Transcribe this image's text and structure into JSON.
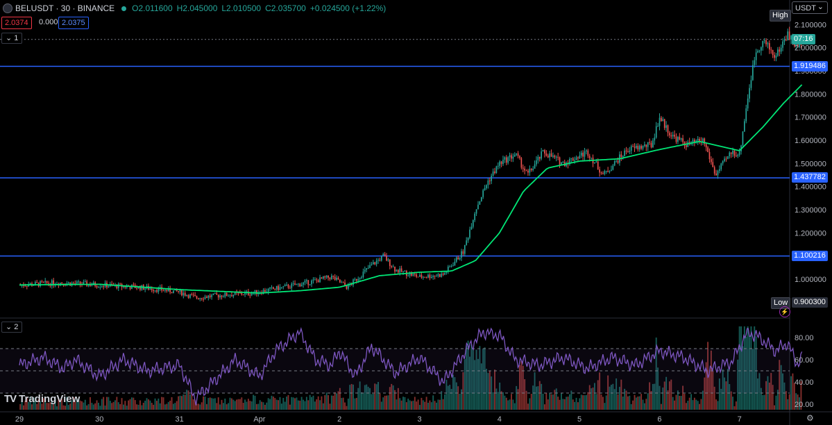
{
  "header": {
    "symbol": "BELUSDT · 30 · BINANCE",
    "open": "O2.011600",
    "high": "H2.045000",
    "low": "L2.010500",
    "close": "C2.035700",
    "change": "+0.024500 (+1.22%)",
    "sell_price": "2.0374",
    "spread": "0.0001",
    "buy_price": "2.0375",
    "pane1_index": "1",
    "pane2_index": "2",
    "currency": "USDT",
    "currency_arrow": "⌄"
  },
  "price_axis": {
    "labels": [
      "2.100000",
      "2.000000",
      "1.900000",
      "1.800000",
      "1.700000",
      "1.600000",
      "1.500000",
      "1.400000",
      "1.300000",
      "1.200000",
      "1.100000",
      "1.000000"
    ],
    "countdown": "07:16",
    "high_label": "High",
    "low_label": "Low",
    "low_value": "0.900300",
    "h_lines": [
      "1.919486",
      "1.437782",
      "1.100216"
    ]
  },
  "rsi_axis": {
    "labels": [
      "80.00",
      "60.00",
      "40.00",
      "20.00"
    ]
  },
  "x_axis": {
    "labels": [
      "29",
      "30",
      "31",
      "Apr",
      "2",
      "3",
      "4",
      "5",
      "6",
      "7"
    ]
  },
  "branding": {
    "name": "TradingView",
    "mark": "TV"
  },
  "colors": {
    "up": "#26a69a",
    "down": "#ef5350",
    "ma": "#00e676",
    "hline": "#2962ff",
    "rsi": "#7e57c2"
  },
  "chart_data": {
    "type": "candlestick",
    "symbol": "BELUSDT",
    "interval": "30",
    "exchange": "BINANCE",
    "price_range": [
      0.85,
      2.14
    ],
    "horizontal_levels": [
      1.919486,
      1.437782,
      1.100216
    ],
    "last_price": 2.0357,
    "day_ticks": [
      "29",
      "30",
      "31",
      "Apr",
      "2",
      "3",
      "4",
      "5",
      "6",
      "7"
    ],
    "close_path": [
      {
        "t": 0.0,
        "p": 0.975
      },
      {
        "t": 0.5,
        "p": 0.985
      },
      {
        "t": 1.0,
        "p": 0.975
      },
      {
        "t": 1.5,
        "p": 0.965
      },
      {
        "t": 2.0,
        "p": 0.945
      },
      {
        "t": 2.2,
        "p": 0.92
      },
      {
        "t": 2.5,
        "p": 0.93
      },
      {
        "t": 2.9,
        "p": 0.94
      },
      {
        "t": 3.3,
        "p": 0.965
      },
      {
        "t": 3.6,
        "p": 0.985
      },
      {
        "t": 3.9,
        "p": 1.01
      },
      {
        "t": 4.1,
        "p": 0.965
      },
      {
        "t": 4.4,
        "p": 1.06
      },
      {
        "t": 4.55,
        "p": 1.1
      },
      {
        "t": 4.7,
        "p": 1.04
      },
      {
        "t": 5.0,
        "p": 1.01
      },
      {
        "t": 5.3,
        "p": 1.02
      },
      {
        "t": 5.55,
        "p": 1.12
      },
      {
        "t": 5.7,
        "p": 1.3
      },
      {
        "t": 5.85,
        "p": 1.42
      },
      {
        "t": 6.0,
        "p": 1.5
      },
      {
        "t": 6.2,
        "p": 1.54
      },
      {
        "t": 6.35,
        "p": 1.45
      },
      {
        "t": 6.55,
        "p": 1.55
      },
      {
        "t": 6.8,
        "p": 1.5
      },
      {
        "t": 7.1,
        "p": 1.55
      },
      {
        "t": 7.3,
        "p": 1.45
      },
      {
        "t": 7.6,
        "p": 1.56
      },
      {
        "t": 7.9,
        "p": 1.58
      },
      {
        "t": 8.0,
        "p": 1.7
      },
      {
        "t": 8.15,
        "p": 1.62
      },
      {
        "t": 8.35,
        "p": 1.58
      },
      {
        "t": 8.55,
        "p": 1.6
      },
      {
        "t": 8.7,
        "p": 1.45
      },
      {
        "t": 8.9,
        "p": 1.55
      },
      {
        "t": 9.0,
        "p": 1.54
      },
      {
        "t": 9.1,
        "p": 1.78
      },
      {
        "t": 9.2,
        "p": 1.98
      },
      {
        "t": 9.3,
        "p": 2.03
      },
      {
        "t": 9.45,
        "p": 1.96
      },
      {
        "t": 9.6,
        "p": 2.06
      },
      {
        "t": 9.72,
        "p": 2.0
      },
      {
        "t": 9.78,
        "p": 2.0357
      }
    ],
    "ma_path": [
      {
        "t": 0.0,
        "p": 0.975
      },
      {
        "t": 1.0,
        "p": 0.978
      },
      {
        "t": 2.0,
        "p": 0.955
      },
      {
        "t": 3.0,
        "p": 0.94
      },
      {
        "t": 3.5,
        "p": 0.95
      },
      {
        "t": 4.0,
        "p": 0.965
      },
      {
        "t": 4.5,
        "p": 1.015
      },
      {
        "t": 5.0,
        "p": 1.03
      },
      {
        "t": 5.4,
        "p": 1.035
      },
      {
        "t": 5.7,
        "p": 1.08
      },
      {
        "t": 6.0,
        "p": 1.2
      },
      {
        "t": 6.3,
        "p": 1.38
      },
      {
        "t": 6.6,
        "p": 1.48
      },
      {
        "t": 7.0,
        "p": 1.51
      },
      {
        "t": 7.5,
        "p": 1.52
      },
      {
        "t": 8.0,
        "p": 1.56
      },
      {
        "t": 8.5,
        "p": 1.595
      },
      {
        "t": 9.0,
        "p": 1.555
      },
      {
        "t": 9.3,
        "p": 1.66
      },
      {
        "t": 9.55,
        "p": 1.76
      },
      {
        "t": 9.78,
        "p": 1.84
      }
    ],
    "rsi": {
      "ylim": [
        15,
        90
      ],
      "levels": [
        70,
        50,
        30
      ],
      "path": [
        {
          "t": 0.0,
          "p": 55
        },
        {
          "t": 0.3,
          "p": 62
        },
        {
          "t": 0.55,
          "p": 52
        },
        {
          "t": 0.7,
          "p": 60
        },
        {
          "t": 1.0,
          "p": 45
        },
        {
          "t": 1.3,
          "p": 60
        },
        {
          "t": 1.6,
          "p": 50
        },
        {
          "t": 2.0,
          "p": 55
        },
        {
          "t": 2.2,
          "p": 25
        },
        {
          "t": 2.35,
          "p": 35
        },
        {
          "t": 2.7,
          "p": 60
        },
        {
          "t": 3.0,
          "p": 45
        },
        {
          "t": 3.2,
          "p": 68
        },
        {
          "t": 3.5,
          "p": 85
        },
        {
          "t": 3.7,
          "p": 60
        },
        {
          "t": 3.9,
          "p": 55
        },
        {
          "t": 4.0,
          "p": 68
        },
        {
          "t": 4.2,
          "p": 45
        },
        {
          "t": 4.4,
          "p": 72
        },
        {
          "t": 4.7,
          "p": 48
        },
        {
          "t": 5.0,
          "p": 62
        },
        {
          "t": 5.3,
          "p": 40
        },
        {
          "t": 5.6,
          "p": 70
        },
        {
          "t": 5.8,
          "p": 85
        },
        {
          "t": 6.0,
          "p": 82
        },
        {
          "t": 6.2,
          "p": 60
        },
        {
          "t": 6.5,
          "p": 55
        },
        {
          "t": 6.8,
          "p": 62
        },
        {
          "t": 7.1,
          "p": 52
        },
        {
          "t": 7.4,
          "p": 62
        },
        {
          "t": 7.7,
          "p": 55
        },
        {
          "t": 8.0,
          "p": 68
        },
        {
          "t": 8.3,
          "p": 62
        },
        {
          "t": 8.6,
          "p": 50
        },
        {
          "t": 8.9,
          "p": 58
        },
        {
          "t": 9.1,
          "p": 85
        },
        {
          "t": 9.25,
          "p": 80
        },
        {
          "t": 9.45,
          "p": 68
        },
        {
          "t": 9.6,
          "p": 75
        },
        {
          "t": 9.72,
          "p": 56
        },
        {
          "t": 9.78,
          "p": 62
        }
      ]
    }
  }
}
